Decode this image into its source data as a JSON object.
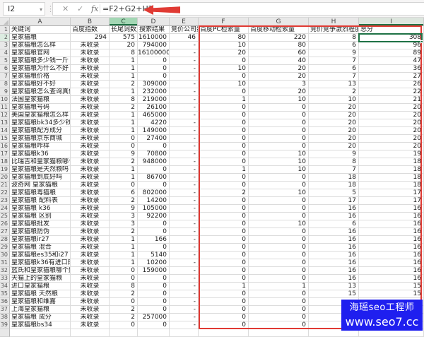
{
  "formula_bar": {
    "name_box": "I2",
    "dropdown_icon": "▾",
    "handle_icon": "⋮",
    "cancel_icon": "✕",
    "enter_icon": "✓",
    "function_icon": "fx",
    "formula": "=F2+G2+H2"
  },
  "annotations": {
    "arrow_color": "#e03a33",
    "highlight_box_color": "#e03a33"
  },
  "selection": {
    "cell": "I2",
    "value": "308",
    "border_color": "#1f7245",
    "highlighted_column_header": "C",
    "selected_column_header": "I"
  },
  "sheet": {
    "col_letters": [
      "A",
      "B",
      "C",
      "D",
      "E",
      "F",
      "G",
      "H",
      "I"
    ],
    "header_labels": [
      "关键词",
      "百度指数",
      "长尾词数量",
      "搜索结果",
      "竞价公司数",
      "百度PC检索量",
      "百度移动检索量",
      "竞价竞争激烈程度",
      "总分"
    ],
    "not_indexed_label": "未收录",
    "rows": [
      [
        "2",
        "皇家猫粮",
        "294",
        "575",
        "1610000",
        "46",
        "80",
        "220",
        "8",
        "308"
      ],
      [
        "3",
        "皇家猫粮怎么样",
        "未收录",
        "20",
        "794000",
        "-",
        "10",
        "80",
        "6",
        "96"
      ],
      [
        "4",
        "皇家猫粮官网",
        "未收录",
        "8",
        "16100000",
        "-",
        "20",
        "60",
        "9",
        "89"
      ],
      [
        "5",
        "皇家猫粮多少钱一斤",
        "未收录",
        "1",
        "0",
        "-",
        "0",
        "40",
        "7",
        "47"
      ],
      [
        "6",
        "皇家猫粮为什么不好",
        "未收录",
        "1",
        "0",
        "-",
        "10",
        "20",
        "6",
        "36"
      ],
      [
        "7",
        "皇家猫粮价格",
        "未收录",
        "1",
        "0",
        "-",
        "0",
        "20",
        "7",
        "27"
      ],
      [
        "8",
        "皇家猫粮好不好",
        "未收录",
        "2",
        "309000",
        "-",
        "10",
        "3",
        "13",
        "26"
      ],
      [
        "9",
        "皇家猫粮怎么查询真伪",
        "未收录",
        "1",
        "232000",
        "-",
        "0",
        "20",
        "2",
        "22"
      ],
      [
        "10",
        "法国皇家猫粮",
        "未收录",
        "8",
        "219000",
        "-",
        "1",
        "10",
        "10",
        "21"
      ],
      [
        "11",
        "皇家猫粮号码",
        "未收录",
        "2",
        "26100",
        "-",
        "0",
        "0",
        "20",
        "20"
      ],
      [
        "12",
        "美国皇家猫粮怎么样",
        "未收录",
        "1",
        "465000",
        "-",
        "0",
        "0",
        "20",
        "20"
      ],
      [
        "13",
        "皇家猫粮bk34多少钱",
        "未收录",
        "1",
        "4220",
        "-",
        "0",
        "0",
        "20",
        "20"
      ],
      [
        "14",
        "皇家猫粮配方成分",
        "未收录",
        "1",
        "149000",
        "-",
        "0",
        "0",
        "20",
        "20"
      ],
      [
        "15",
        "皇家猫粮京东商城",
        "未收录",
        "0",
        "27400",
        "-",
        "0",
        "0",
        "20",
        "20"
      ],
      [
        "16",
        "皇家猫粮咋样",
        "未收录",
        "0",
        "0",
        "-",
        "0",
        "0",
        "20",
        "20"
      ],
      [
        "17",
        "皇家猫粮k36",
        "未收录",
        "9",
        "70800",
        "-",
        "0",
        "10",
        "9",
        "19"
      ],
      [
        "18",
        "比瑞吉和皇家猫粮哪个好",
        "未收录",
        "2",
        "948000",
        "-",
        "0",
        "10",
        "8",
        "18"
      ],
      [
        "19",
        "皇家猫粮是天然粮吗",
        "未收录",
        "1",
        "0",
        "-",
        "1",
        "10",
        "7",
        "18"
      ],
      [
        "20",
        "皇家猫粮到底好吗",
        "未收录",
        "1",
        "86700",
        "-",
        "0",
        "0",
        "18",
        "18"
      ],
      [
        "21",
        "波奇网 皇家猫粮",
        "未收录",
        "0",
        "0",
        "-",
        "0",
        "0",
        "18",
        "18"
      ],
      [
        "22",
        "皇家猫粮毒猫粮",
        "未收录",
        "6",
        "802000",
        "-",
        "2",
        "10",
        "5",
        "17"
      ],
      [
        "23",
        "皇家猫粮 配料表",
        "未收录",
        "2",
        "14200",
        "-",
        "0",
        "0",
        "17",
        "17"
      ],
      [
        "24",
        "皇家猫粮 k36",
        "未收录",
        "9",
        "105000",
        "-",
        "0",
        "0",
        "16",
        "16"
      ],
      [
        "25",
        "皇家猫粮 区别",
        "未收录",
        "3",
        "92200",
        "-",
        "0",
        "0",
        "16",
        "16"
      ],
      [
        "26",
        "皇家猫粮批发",
        "未收录",
        "3",
        "0",
        "-",
        "0",
        "10",
        "6",
        "16"
      ],
      [
        "27",
        "皇家猫粮防伪",
        "未收录",
        "2",
        "0",
        "-",
        "0",
        "0",
        "16",
        "16"
      ],
      [
        "28",
        "皇家猫粮ir27",
        "未收录",
        "1",
        "166",
        "-",
        "0",
        "0",
        "16",
        "16"
      ],
      [
        "29",
        "皇家猫粮 混合",
        "未收录",
        "1",
        "0",
        "-",
        "0",
        "0",
        "16",
        "16"
      ],
      [
        "30",
        "皇家猫粮es35和i27",
        "未收录",
        "1",
        "5140",
        "-",
        "0",
        "0",
        "16",
        "16"
      ],
      [
        "31",
        "皇家猫粮k36有进口的吗",
        "未收录",
        "1",
        "10200",
        "-",
        "0",
        "0",
        "16",
        "16"
      ],
      [
        "32",
        "蓝氏和皇家猫粮哪个好",
        "未收录",
        "0",
        "159000",
        "-",
        "0",
        "0",
        "16",
        "16"
      ],
      [
        "33",
        "天猫上的皇家猫粮",
        "未收录",
        "0",
        "0",
        "-",
        "0",
        "0",
        "16",
        "16"
      ],
      [
        "34",
        "进口皇家猫粮",
        "未收录",
        "8",
        "0",
        "-",
        "1",
        "1",
        "13",
        "15"
      ],
      [
        "35",
        "皇家猫粮 天然粮",
        "未收录",
        "2",
        "0",
        "-",
        "0",
        "0",
        "15",
        "15"
      ],
      [
        "36",
        "皇家猫粮和维嘉",
        "未收录",
        "0",
        "0",
        "-",
        "0",
        "0",
        "",
        ""
      ],
      [
        "37",
        "上海皇家猫粮",
        "未收录",
        "2",
        "0",
        "-",
        "0",
        "0",
        "",
        ""
      ],
      [
        "38",
        "皇家猫粮 成分",
        "未收录",
        "2",
        "257000",
        "-",
        "0",
        "0",
        "",
        ""
      ],
      [
        "39",
        "皇家猫粮bs34",
        "未收录",
        "0",
        "0",
        "-",
        "0",
        "0",
        "",
        ""
      ]
    ]
  },
  "watermark": {
    "line1": "海瑶seo工程师",
    "line2": "www.seo7.cc",
    "bg_color": "#1f1fef"
  }
}
